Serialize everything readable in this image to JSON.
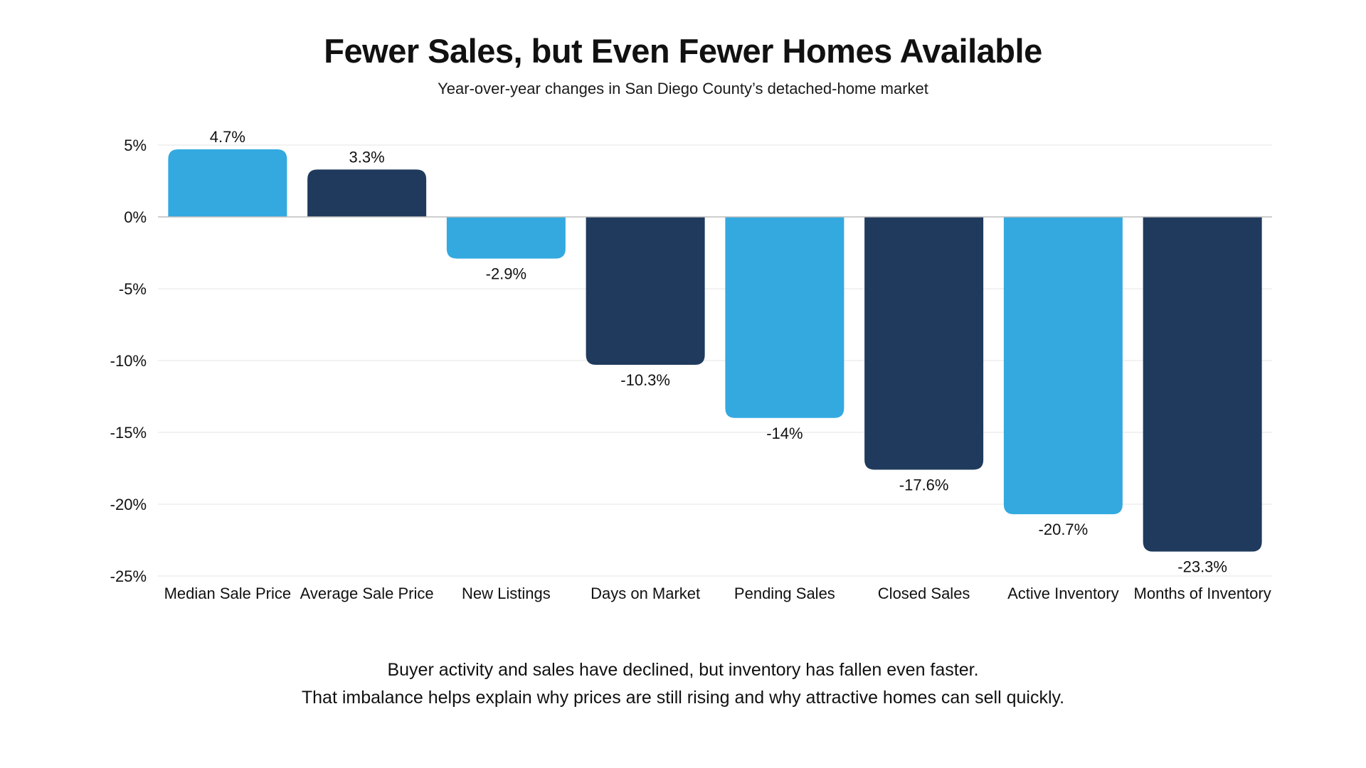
{
  "chart_data": {
    "type": "bar",
    "title": "Fewer Sales, but Even Fewer Homes Available",
    "subtitle": "Year-over-year changes in San Diego County’s detached-home market",
    "categories": [
      "Median Sale Price",
      "Average Sale Price",
      "New Listings",
      "Days on Market",
      "Pending Sales",
      "Closed Sales",
      "Active Inventory",
      "Months of Inventory"
    ],
    "values": [
      4.7,
      3.3,
      -2.9,
      -10.3,
      -14,
      -17.6,
      -20.7,
      -23.3
    ],
    "value_labels": [
      "4.7%",
      "3.3%",
      "-2.9%",
      "-10.3%",
      "-14%",
      "-17.6%",
      "-20.7%",
      "-23.3%"
    ],
    "bar_colors": [
      "#33a9e0",
      "#1f3a5c",
      "#33a9e0",
      "#1f3a5c",
      "#33a9e0",
      "#1f3a5c",
      "#33a9e0",
      "#1f3a5c"
    ],
    "ylim": [
      -25,
      5
    ],
    "yticks": [
      5,
      0,
      -5,
      -10,
      -15,
      -20,
      -25
    ],
    "ytick_labels": [
      "5%",
      "0%",
      "-5%",
      "-10%",
      "-15%",
      "-20%",
      "-25%"
    ],
    "grid": true,
    "legend": "none"
  },
  "footnote": {
    "line1": "Buyer activity and sales have declined, but inventory has fallen even faster.",
    "line2": "That imbalance helps explain why prices are still rising and why attractive homes can sell quickly."
  },
  "colors": {
    "light_blue": "#33a9e0",
    "navy": "#1f3a5c",
    "grid": "#e6e6e6",
    "zero_line": "#bdbdbd"
  }
}
